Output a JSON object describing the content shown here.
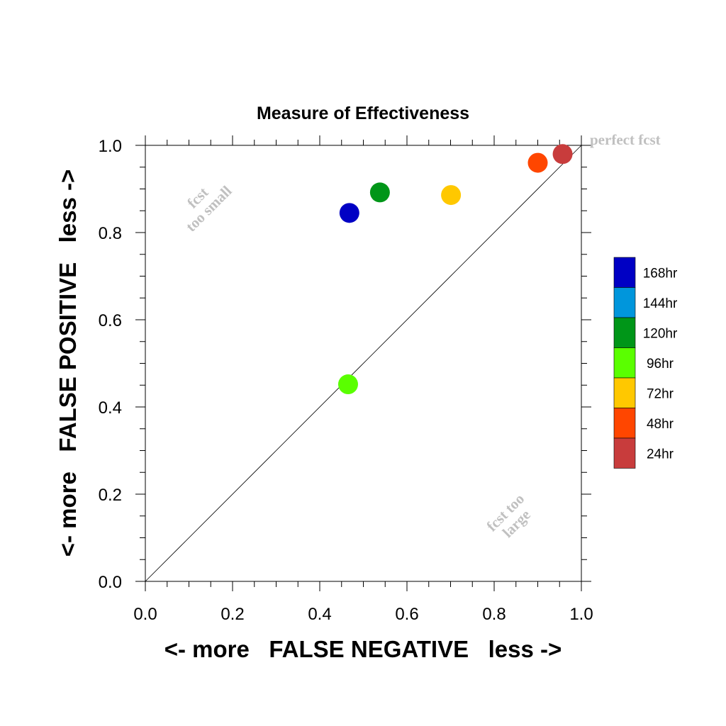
{
  "chart_data": {
    "type": "scatter",
    "title": "Measure of Effectiveness",
    "xlabel": "<- more   FALSE NEGATIVE   less ->",
    "ylabel": "<- more   FALSE POSITIVE   less ->",
    "xlim": [
      0.0,
      1.0
    ],
    "ylim": [
      0.0,
      1.0
    ],
    "xticks": [
      "0.0",
      "0.2",
      "0.4",
      "0.6",
      "0.8",
      "1.0"
    ],
    "yticks": [
      "0.0",
      "0.2",
      "0.4",
      "0.6",
      "0.8",
      "1.0"
    ],
    "grid": false,
    "diagonal": true,
    "legend_position": "right",
    "annotations": {
      "top_right": "perfect fcst",
      "upper_left_line1": "fcst",
      "upper_left_line2": "too small",
      "lower_right_line1": "fcst too",
      "lower_right_line2": "large"
    },
    "series": [
      {
        "name": "168hr",
        "color": "#0000c4",
        "x": 0.468,
        "y": 0.845
      },
      {
        "name": "144hr",
        "color": "#0096dc",
        "x": null,
        "y": null
      },
      {
        "name": "120hr",
        "color": "#009618",
        "x": 0.538,
        "y": 0.892
      },
      {
        "name": "96hr",
        "color": "#5aff00",
        "x": 0.465,
        "y": 0.452
      },
      {
        "name": "72hr",
        "color": "#ffc800",
        "x": 0.701,
        "y": 0.886
      },
      {
        "name": "48hr",
        "color": "#ff4600",
        "x": 0.9,
        "y": 0.96
      },
      {
        "name": "24hr",
        "color": "#c83c3c",
        "x": 0.957,
        "y": 0.98
      }
    ]
  }
}
